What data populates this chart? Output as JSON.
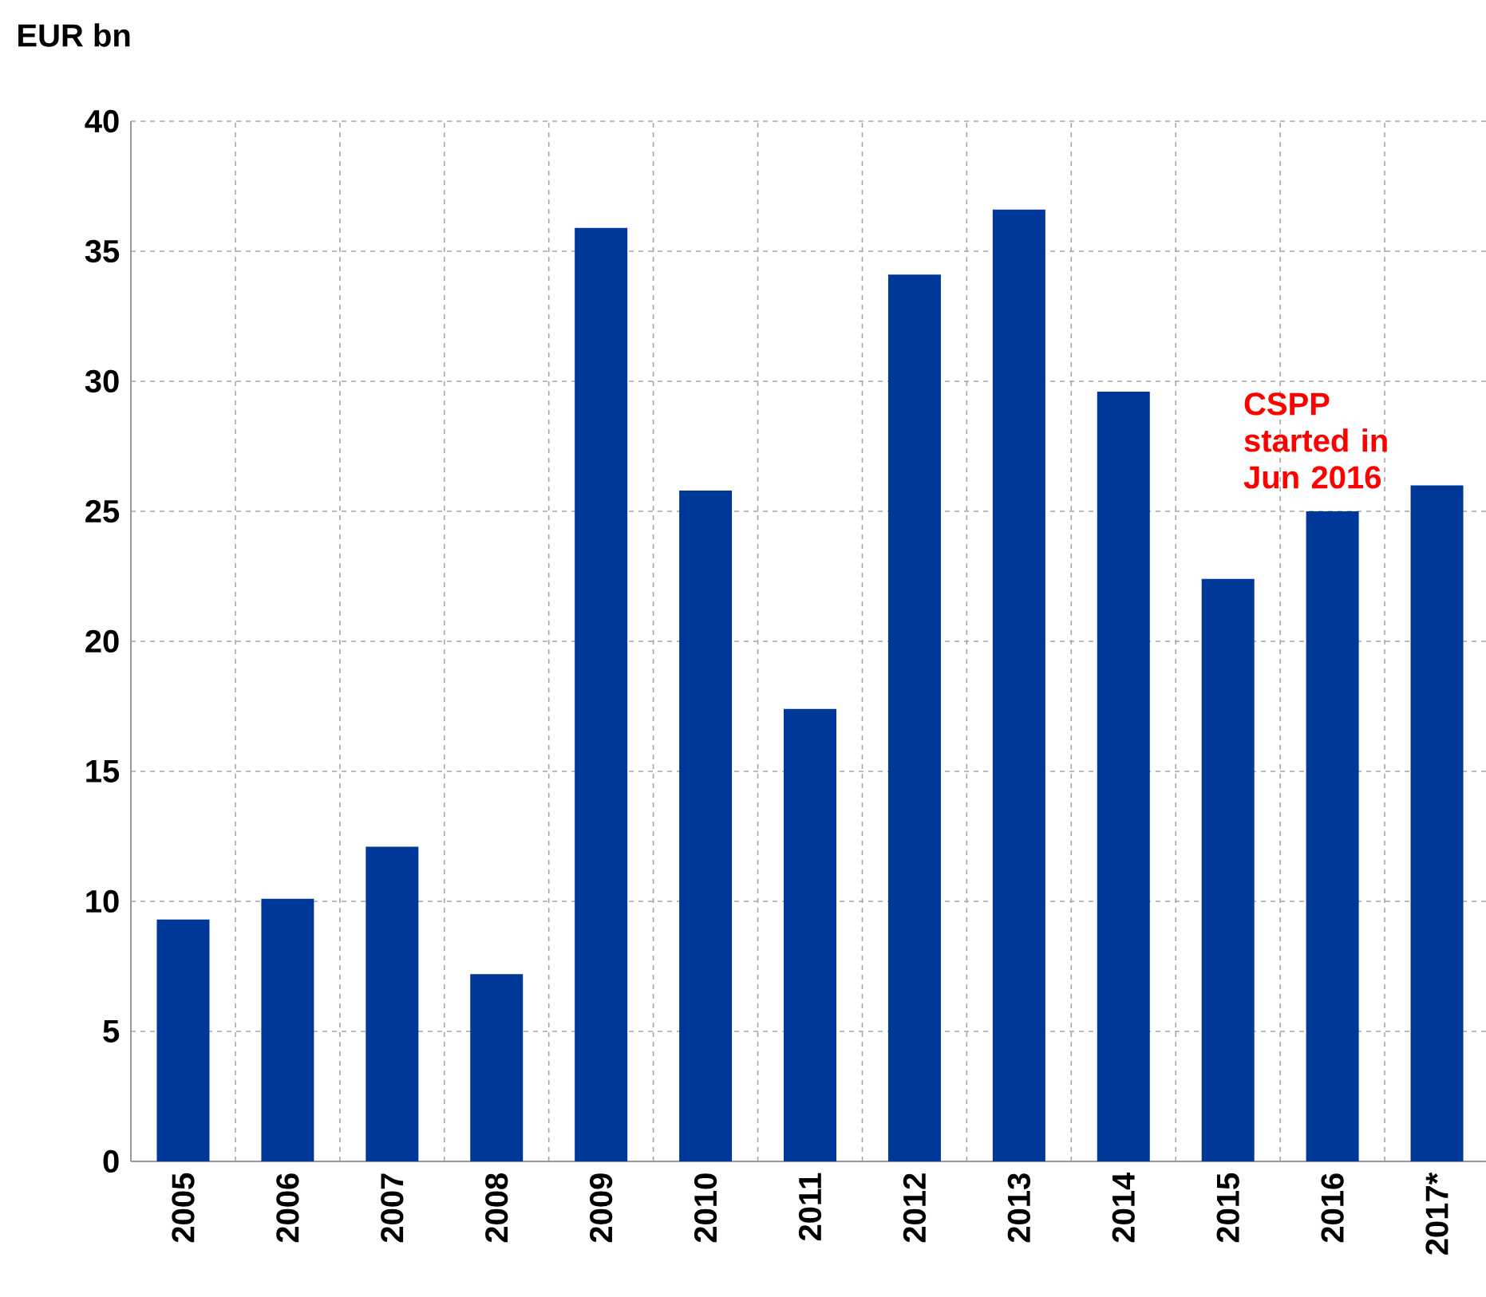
{
  "chart_data": {
    "type": "bar",
    "ylabel": "EUR bn",
    "categories": [
      "2005",
      "2006",
      "2007",
      "2008",
      "2009",
      "2010",
      "2011",
      "2012",
      "2013",
      "2014",
      "2015",
      "2016",
      "2017*"
    ],
    "values": [
      9.3,
      10.1,
      12.1,
      7.2,
      35.9,
      25.8,
      17.4,
      34.1,
      36.6,
      29.6,
      22.4,
      25.0,
      26.0
    ],
    "color": "#00389a",
    "ylim": [
      0,
      40
    ],
    "yticks": [
      0,
      5,
      10,
      15,
      20,
      25,
      30,
      35,
      40
    ],
    "grid": true,
    "annotations": [
      {
        "text": "CSPP started in Jun 2016",
        "x": "2016",
        "y": 25.0
      }
    ]
  }
}
